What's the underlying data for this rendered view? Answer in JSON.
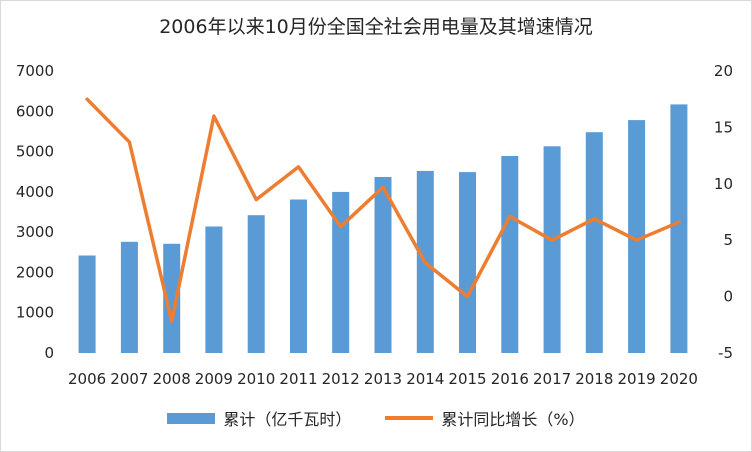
{
  "chart_data": {
    "type": "bar+line",
    "title": "2006年以来10月份全国全社会用电量及其增速情况",
    "categories": [
      "2006",
      "2007",
      "2008",
      "2009",
      "2010",
      "2011",
      "2012",
      "2013",
      "2014",
      "2015",
      "2016",
      "2017",
      "2018",
      "2019",
      "2020"
    ],
    "series": [
      {
        "name": "累计（亿千瓦时）",
        "type": "bar",
        "axis": "left",
        "color": "#5b9bd5",
        "values": [
          2420,
          2760,
          2710,
          3140,
          3420,
          3810,
          4000,
          4370,
          4520,
          4490,
          4890,
          5130,
          5480,
          5780,
          6170
        ]
      },
      {
        "name": "累计同比增长（%）",
        "type": "line",
        "axis": "right",
        "color": "#ed7d31",
        "values": [
          17.5,
          13.7,
          -2.2,
          16.0,
          8.6,
          11.5,
          6.2,
          9.7,
          3.0,
          0.0,
          7.1,
          5.0,
          6.9,
          5.0,
          6.6
        ]
      }
    ],
    "y_left": {
      "min": 0,
      "max": 7000,
      "ticks": [
        0,
        1000,
        2000,
        3000,
        4000,
        5000,
        6000,
        7000
      ]
    },
    "y_right": {
      "min": -5,
      "max": 20,
      "ticks": [
        -5,
        0,
        5,
        10,
        15,
        20
      ]
    },
    "grid": false,
    "legend": "bottom"
  }
}
